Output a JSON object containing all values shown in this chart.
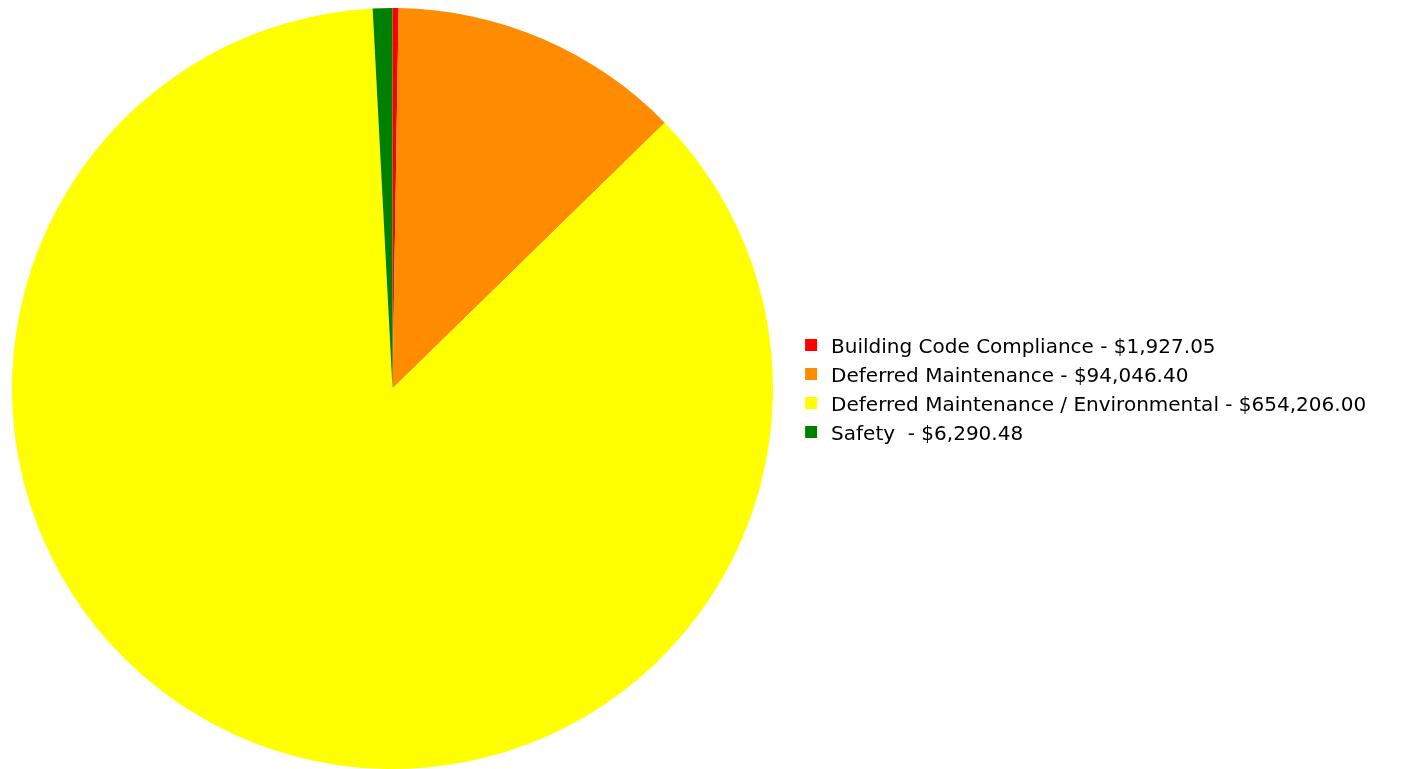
{
  "chart_data": {
    "type": "pie",
    "categories": [
      "Building Code Compliance",
      "Deferred Maintenance",
      "Deferred Maintenance / Environmental",
      "Safety "
    ],
    "values": [
      1927.05,
      94046.4,
      654206.0,
      6290.48
    ],
    "value_labels": [
      "$1,927.05",
      "$94,046.40",
      "$654,206.00",
      "$6,290.48"
    ],
    "colors": [
      "#ff0000",
      "#ff8c00",
      "#ffff00",
      "#008000"
    ],
    "legend": "right"
  }
}
